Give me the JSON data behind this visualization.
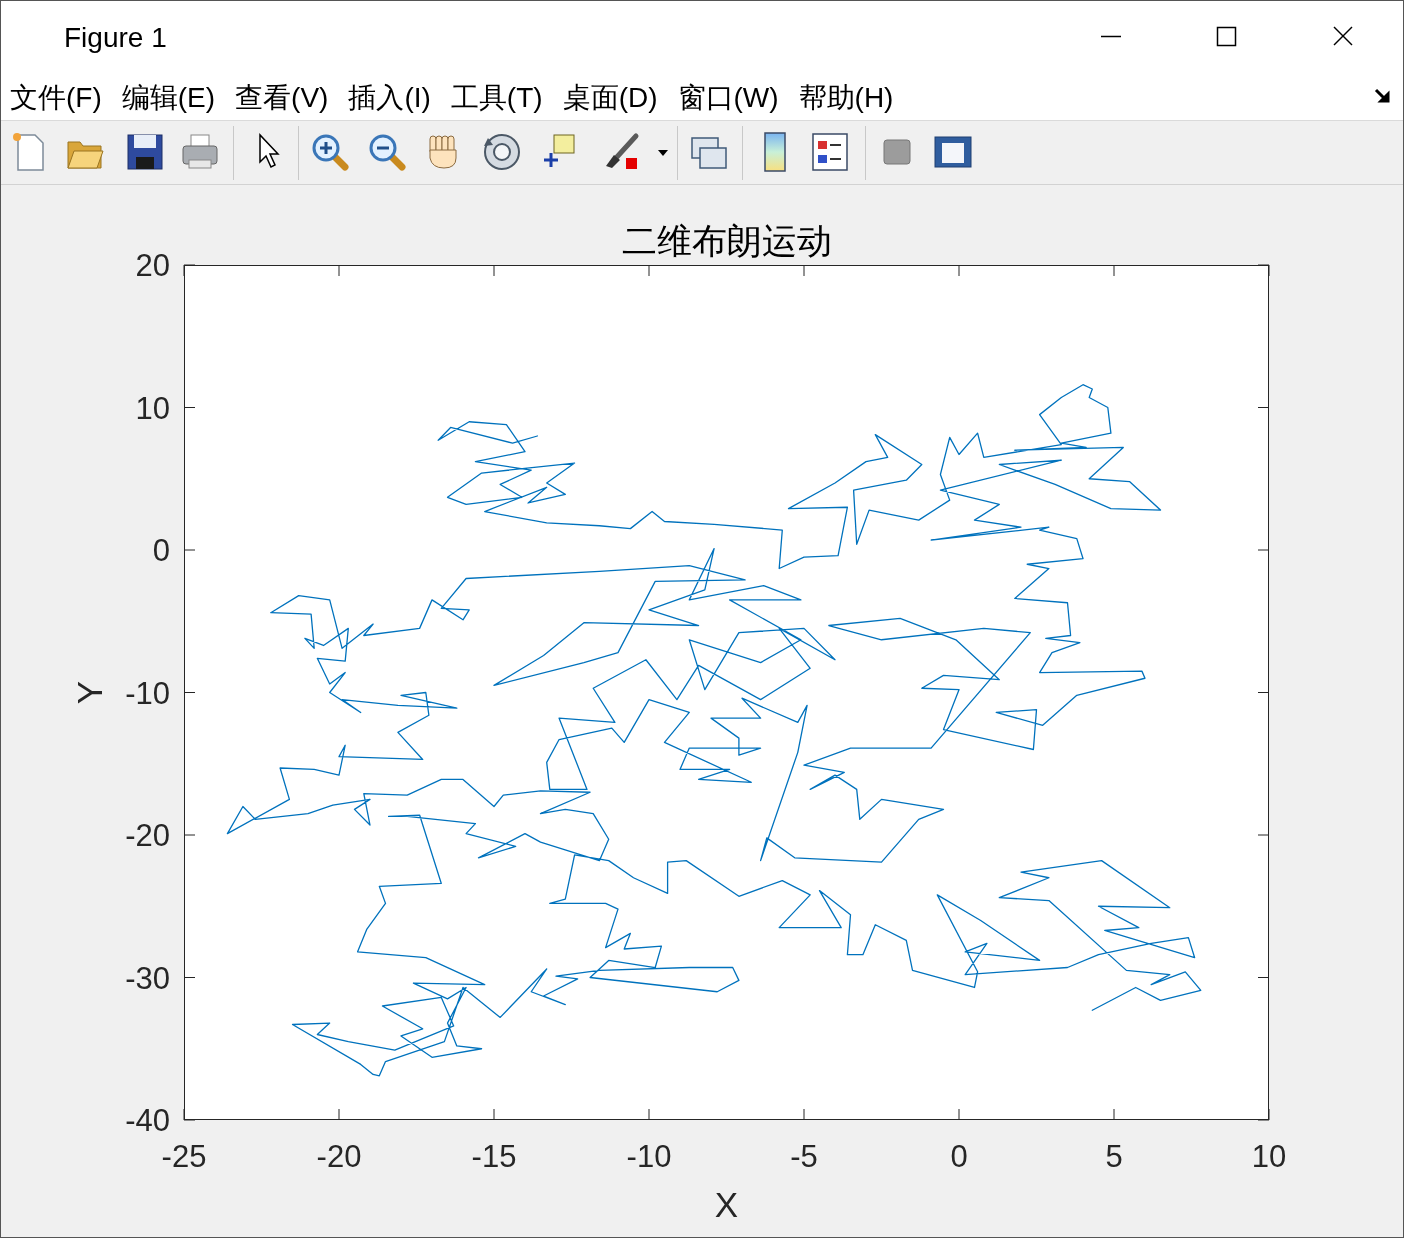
{
  "chart_data": {
    "type": "line",
    "title": "二维布朗运动",
    "xlabel": "X",
    "ylabel": "Y",
    "color": "#0072bd",
    "xlim": [
      -25,
      10
    ],
    "ylim": [
      -40,
      20
    ],
    "xticks": [
      -25,
      -20,
      -15,
      -10,
      -5,
      0,
      5,
      10
    ],
    "yticks": [
      -40,
      -30,
      -20,
      -10,
      0,
      10,
      20
    ],
    "annotations": [
      "Figure 1",
      "文件(F)",
      "编辑(E)",
      "查看(V)",
      "插入(I)",
      "工具(T)",
      "桌面(D)",
      "窗口(W)",
      "帮助(H)"
    ],
    "x": [
      -13.6,
      -14.4,
      -16.4,
      -16.8,
      -15.8,
      -14.6,
      -14.0,
      -15.6,
      -13.8,
      -14.8,
      -14.1,
      -15.9,
      -16.5,
      -15.4,
      -12.4,
      -13.3,
      -12.7,
      -13.9,
      -13.3,
      -15.3,
      -13.3,
      -11.6,
      -10.6,
      -9.9,
      -9.5,
      -7.9,
      -5.7,
      -5.8,
      -5.0,
      -3.9,
      -3.6,
      -5.5,
      -4.0,
      -3.0,
      -2.3,
      -2.7,
      -1.2,
      -1.7,
      -3.4,
      -3.3,
      -2.9,
      -1.3,
      -0.3,
      -0.6,
      -0.3,
      0.0,
      0.6,
      0.8,
      3.3,
      2.6,
      3.3,
      4.0,
      4.3,
      4.2,
      4.8,
      4.9,
      3.3,
      4.1,
      1.8,
      5.3,
      4.2,
      5.5,
      6.5,
      4.9,
      3.1,
      1.3,
      3.3,
      -0.6,
      1.3,
      0.5,
      2.0,
      -0.9,
      2.9,
      2.6,
      3.8,
      3.9,
      4.0,
      2.2,
      2.9,
      1.8,
      3.5,
      3.6,
      2.8,
      3.9,
      3.0,
      2.6,
      5.9,
      6.0,
      3.8,
      2.7,
      1.2,
      2.5,
      2.4,
      -0.5,
      0.0,
      -1.2,
      -0.5,
      1.3,
      -0.1,
      -1.9,
      -4.2,
      -2.5,
      0.8,
      2.3,
      -0.9,
      -3.5,
      -5.0,
      -3.7,
      -4.8,
      -4.0,
      -3.3,
      -3.2,
      -2.5,
      -0.5,
      -1.3,
      -2.5,
      -5.3,
      -6.2,
      -6.4,
      -5.2,
      -4.9,
      -5.2,
      -7.0,
      -6.4,
      -8.0,
      -7.1,
      -7.1,
      -6.4,
      -8.7,
      -9.0,
      -7.4,
      -8.4,
      -6.7,
      -9.5,
      -8.7,
      -10.0,
      -10.8,
      -11.2,
      -12.9,
      -13.3,
      -13.2,
      -12.0,
      -12.9,
      -11.1,
      -11.8,
      -10.1,
      -9.1,
      -8.4,
      -6.4,
      -4.8,
      -5.8,
      -4.0,
      -5.0,
      -7.1,
      -8.2,
      -8.7,
      -6.4,
      -5.1,
      -7.4,
      -5.1,
      -6.3,
      -8.7,
      -7.9,
      -8.2,
      -10.0,
      -8.4,
      -12.1,
      -13.4,
      -15.0,
      -12.1,
      -11.0,
      -9.8,
      -6.9,
      -8.7,
      -11.6,
      -15.9,
      -16.7,
      -15.8,
      -16.0,
      -17.0,
      -17.4,
      -19.2,
      -18.9,
      -19.9,
      -20.3,
      -21.3,
      -22.2,
      -20.9,
      -20.8,
      -21.1,
      -20.5,
      -19.7,
      -19.8,
      -20.7,
      -20.3,
      -19.8,
      -20.3,
      -19.3,
      -19.9,
      -18.1,
      -16.2,
      -18.0,
      -17.2,
      -17.1,
      -18.1,
      -17.3,
      -20.0,
      -19.8,
      -20.0,
      -20.8,
      -21.9,
      -21.6,
      -23.6,
      -23.1,
      -22.7,
      -21.0,
      -20.2,
      -19.0,
      -19.5,
      -19.0,
      -19.2,
      -17.8,
      -16.7,
      -16.0,
      -15.0,
      -14.7,
      -13.5,
      -11.9,
      -13.5,
      -12.7,
      -11.8,
      -11.3,
      -11.6,
      -13.5,
      -14.0,
      -15.5,
      -14.3,
      -15.9,
      -15.6,
      -17.8,
      -18.4,
      -17.4,
      -16.7,
      -18.7,
      -18.5,
      -19.1,
      -19.4,
      -17.2,
      -15.3,
      -17.6,
      -16.5,
      -15.9,
      -16.5,
      -16.2,
      -15.4,
      -17.0,
      -18.0,
      -17.3,
      -18.6,
      -16.7,
      -16.3,
      -18.2,
      -19.7,
      -20.7,
      -20.3,
      -21.5,
      -19.3,
      -18.9,
      -18.7,
      -18.5,
      -16.6,
      -16.0,
      -14.8,
      -13.3,
      -13.8,
      -12.7,
      -13.4,
      -12.3,
      -13.0,
      -11.6,
      -8.7,
      -7.3,
      -7.1,
      -7.8,
      -11.9,
      -11.3,
      -9.8,
      -9.6,
      -10.8,
      -10.6,
      -11.4,
      -11.0,
      -11.4,
      -13.2,
      -12.7,
      -12.4,
      -11.3,
      -10.5,
      -9.4,
      -9.4,
      -8.8,
      -7.1,
      -5.7,
      -4.8,
      -5.8,
      -3.8,
      -4.5,
      -3.5,
      -3.6,
      -3.1,
      -2.7,
      -1.7,
      -1.5,
      0.5,
      0.6,
      -0.7,
      0.7,
      2.6,
      0.2,
      0.9,
      0.2,
      3.5,
      4.5,
      6.2,
      7.4,
      7.6,
      4.7,
      5.8,
      4.5,
      6.8,
      4.6,
      2.0,
      2.9,
      1.3,
      2.9,
      5.4,
      6.8,
      6.2,
      7.3,
      7.8,
      6.5,
      5.7,
      4.3
    ],
    "values": [
      8.0,
      7.5,
      8.6,
      7.7,
      9.0,
      8.8,
      6.9,
      6.2,
      5.6,
      4.6,
      3.7,
      3.2,
      3.7,
      5.4,
      6.1,
      4.7,
      3.9,
      3.3,
      4.4,
      2.7,
      1.9,
      1.7,
      1.5,
      2.7,
      2.0,
      1.8,
      1.4,
      -1.3,
      -0.5,
      -0.4,
      3.0,
      2.9,
      4.7,
      6.2,
      6.5,
      8.1,
      6.0,
      4.9,
      4.2,
      0.4,
      2.8,
      2.1,
      3.5,
      5.3,
      7.9,
      6.7,
      8.2,
      6.5,
      7.4,
      9.5,
      10.7,
      11.6,
      11.3,
      10.7,
      10.0,
      8.2,
      7.5,
      7.2,
      7.0,
      7.2,
      5.0,
      4.8,
      2.8,
      2.9,
      4.6,
      6.0,
      6.3,
      4.2,
      3.2,
      2.1,
      1.6,
      0.7,
      1.6,
      1.4,
      0.8,
      0.1,
      -0.6,
      -1.0,
      -1.3,
      -3.4,
      -3.7,
      -6.0,
      -6.2,
      -6.5,
      -7.2,
      -8.6,
      -8.5,
      -9.0,
      -10.2,
      -12.3,
      -11.4,
      -11.2,
      -14.0,
      -12.6,
      -9.8,
      -9.7,
      -8.8,
      -9.1,
      -6.3,
      -4.8,
      -5.3,
      -6.3,
      -5.5,
      -5.8,
      -13.9,
      -13.9,
      -15.1,
      -15.6,
      -16.8,
      -15.8,
      -16.8,
      -18.9,
      -17.5,
      -18.2,
      -18.9,
      -21.9,
      -21.6,
      -20.2,
      -21.8,
      -14.2,
      -10.9,
      -12.1,
      -10.4,
      -11.8,
      -11.8,
      -13.2,
      -14.4,
      -13.9,
      -13.9,
      -15.4,
      -15.4,
      -16.1,
      -16.3,
      -13.5,
      -11.4,
      -10.5,
      -13.5,
      -12.5,
      -13.3,
      -14.9,
      -16.8,
      -16.8,
      -11.8,
      -12.1,
      -9.7,
      -7.7,
      -10.5,
      -8.1,
      -10.5,
      -8.3,
      -5.5,
      -7.7,
      -5.5,
      -5.8,
      -9.8,
      -6.3,
      -7.9,
      -6.3,
      -3.5,
      -3.5,
      -2.5,
      -3.5,
      0.1,
      -2.8,
      -4.2,
      -5.3,
      -5.1,
      -7.4,
      -9.5,
      -7.9,
      -7.2,
      -2.2,
      -2.1,
      -1.1,
      -1.5,
      -2.0,
      -4.1,
      -4.2,
      -4.9,
      -3.5,
      -5.5,
      -6.0,
      -5.2,
      -6.9,
      -3.5,
      -3.2,
      -4.4,
      -4.5,
      -6.9,
      -6.2,
      -6.7,
      -5.5,
      -7.8,
      -7.6,
      -9.4,
      -8.6,
      -10.0,
      -11.4,
      -10.5,
      -10.9,
      -11.1,
      -10.2,
      -10.0,
      -11.6,
      -12.8,
      -14.7,
      -14.5,
      -13.7,
      -15.8,
      -15.4,
      -15.3,
      -17.5,
      -19.9,
      -18.0,
      -18.9,
      -18.5,
      -17.9,
      -17.5,
      -18.2,
      -19.3,
      -17.1,
      -17.2,
      -16.1,
      -16.1,
      -18.0,
      -17.2,
      -16.9,
      -17.0,
      -18.5,
      -18.2,
      -18.5,
      -20.3,
      -21.8,
      -20.5,
      -19.9,
      -21.6,
      -20.8,
      -19.9,
      -19.2,
      -18.7,
      -18.7,
      -18.6,
      -23.4,
      -23.6,
      -24.8,
      -26.6,
      -28.2,
      -28.6,
      -30.5,
      -30.4,
      -31.5,
      -30.7,
      -33.2,
      -34.8,
      -35.0,
      -35.6,
      -34.1,
      -33.6,
      -32.0,
      -31.4,
      -33.4,
      -35.1,
      -34.5,
      -34.0,
      -33.2,
      -33.3,
      -36.1,
      -36.8,
      -36.9,
      -35.9,
      -34.5,
      -30.7,
      -32.8,
      -29.4,
      -31.0,
      -31.9,
      -31.3,
      -30.1,
      -29.9,
      -29.5,
      -29.3,
      -29.3,
      -30.2,
      -31.0,
      -30.0,
      -28.8,
      -29.3,
      -27.8,
      -28.0,
      -26.9,
      -27.9,
      -25.2,
      -24.8,
      -24.8,
      -24.5,
      -21.4,
      -21.8,
      -23.0,
      -24.1,
      -21.9,
      -21.8,
      -24.3,
      -23.2,
      -24.2,
      -26.5,
      -26.5,
      -23.9,
      -25.6,
      -28.4,
      -28.4,
      -26.3,
      -27.4,
      -29.5,
      -30.7,
      -29.6,
      -24.2,
      -26.0,
      -28.8,
      -28.2,
      -27.6,
      -29.8,
      -29.3,
      -28.4,
      -27.6,
      -27.2,
      -28.6,
      -26.7,
      -26.5,
      -25.0,
      -25.1,
      -21.8,
      -22.6,
      -23.0,
      -24.4,
      -24.6,
      -29.5,
      -29.8,
      -30.5,
      -29.6,
      -30.9,
      -31.6,
      -30.7,
      -32.3
    ]
  }
}
